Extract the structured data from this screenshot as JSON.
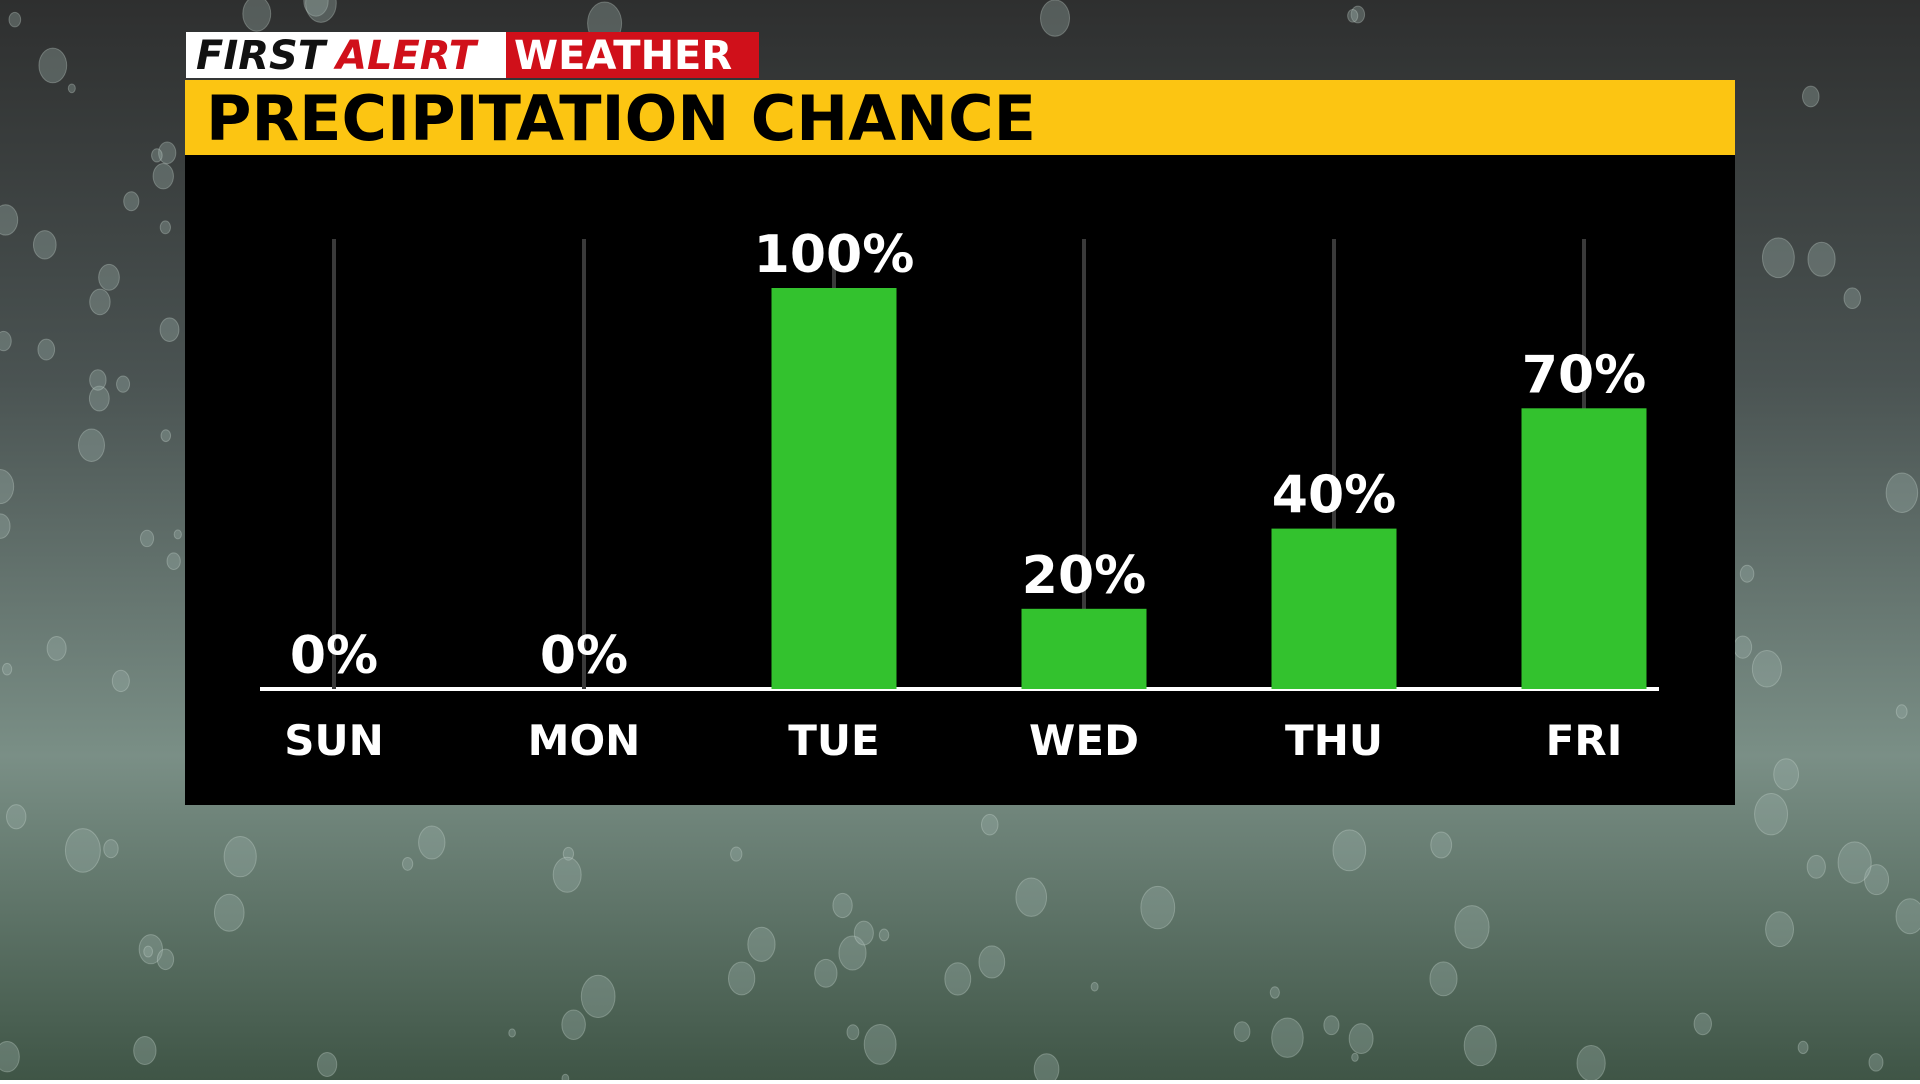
{
  "logo": {
    "first": "FIRST",
    "alert": "ALERT",
    "weather": "WEATHER"
  },
  "chart_data": {
    "type": "bar",
    "title": "PRECIPITATION CHANCE",
    "categories": [
      "SUN",
      "MON",
      "TUE",
      "WED",
      "THU",
      "FRI"
    ],
    "values": [
      0,
      0,
      100,
      20,
      40,
      70
    ],
    "value_labels": [
      "0%",
      "0%",
      "100%",
      "20%",
      "40%",
      "70%"
    ],
    "color": "#33c22e",
    "ylim": [
      0,
      100
    ]
  }
}
